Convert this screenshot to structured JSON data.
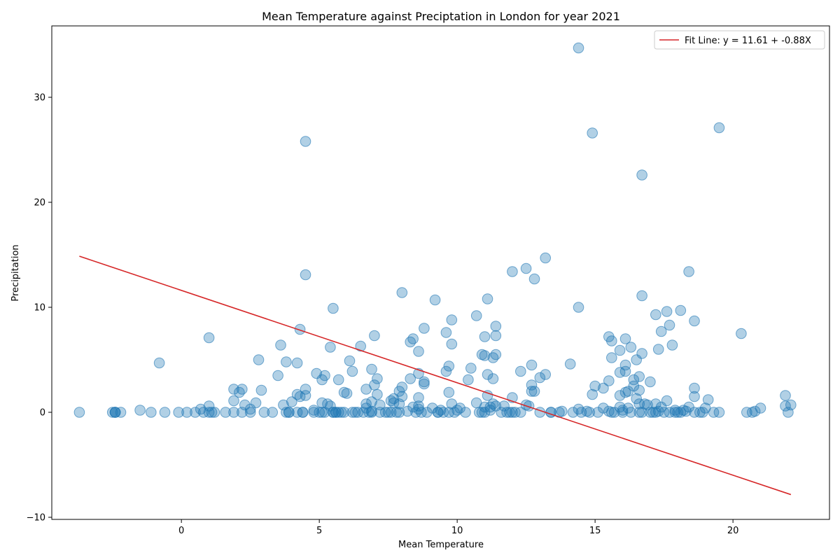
{
  "chart_data": {
    "type": "scatter",
    "title": "Mean Temperature against Preciptation in London for year 2021",
    "xlabel": "Mean Temperature",
    "ylabel": "Precipitation",
    "xlim": [
      -4.7,
      23.5
    ],
    "ylim": [
      -10.2,
      36.8
    ],
    "xticks": [
      0,
      5,
      10,
      15,
      20
    ],
    "yticks": [
      -10,
      0,
      10,
      20,
      30
    ],
    "grid": false,
    "legend_position": "top-right",
    "point_color": "#1f77b4",
    "line_color": "#d62728",
    "fit_line": {
      "label": "Fit Line: y = 11.61 + -0.88X",
      "intercept": 11.61,
      "slope": -0.88,
      "x_range": [
        -3.7,
        22.1
      ]
    },
    "points": [
      [
        -3.7,
        0
      ],
      [
        -2.5,
        0
      ],
      [
        -2.4,
        0
      ],
      [
        -2.4,
        0
      ],
      [
        -2.4,
        0
      ],
      [
        -2.2,
        0
      ],
      [
        -1.5,
        0.2
      ],
      [
        -1.1,
        0
      ],
      [
        -0.8,
        4.7
      ],
      [
        -0.6,
        0
      ],
      [
        -0.1,
        0
      ],
      [
        0.2,
        0
      ],
      [
        0.5,
        0
      ],
      [
        0.7,
        0.3
      ],
      [
        0.8,
        0
      ],
      [
        1.0,
        0
      ],
      [
        1.0,
        0.6
      ],
      [
        1.0,
        7.1
      ],
      [
        1.1,
        0
      ],
      [
        1.2,
        0
      ],
      [
        1.6,
        0
      ],
      [
        1.9,
        0
      ],
      [
        1.9,
        1.1
      ],
      [
        1.9,
        2.2
      ],
      [
        2.1,
        1.9
      ],
      [
        2.2,
        2.2
      ],
      [
        2.2,
        0
      ],
      [
        2.3,
        0.7
      ],
      [
        2.5,
        0
      ],
      [
        2.5,
        0.3
      ],
      [
        2.7,
        0.9
      ],
      [
        2.8,
        5.0
      ],
      [
        2.9,
        2.1
      ],
      [
        3.0,
        0
      ],
      [
        3.3,
        0
      ],
      [
        3.5,
        3.5
      ],
      [
        3.6,
        6.4
      ],
      [
        3.7,
        0.7
      ],
      [
        3.8,
        4.8
      ],
      [
        3.8,
        0
      ],
      [
        3.9,
        0
      ],
      [
        3.9,
        0
      ],
      [
        4.0,
        1.0
      ],
      [
        4.2,
        1.7
      ],
      [
        4.2,
        0
      ],
      [
        4.2,
        4.7
      ],
      [
        4.3,
        7.9
      ],
      [
        4.3,
        1.5
      ],
      [
        4.4,
        0
      ],
      [
        4.4,
        0
      ],
      [
        4.5,
        25.8
      ],
      [
        4.5,
        13.1
      ],
      [
        4.5,
        2.2
      ],
      [
        4.5,
        1.6
      ],
      [
        4.8,
        0
      ],
      [
        4.8,
        0.2
      ],
      [
        4.9,
        3.7
      ],
      [
        5.0,
        0
      ],
      [
        5.1,
        3.1
      ],
      [
        5.1,
        0.9
      ],
      [
        5.1,
        0
      ],
      [
        5.2,
        3.5
      ],
      [
        5.2,
        0
      ],
      [
        5.3,
        0.8
      ],
      [
        5.4,
        6.2
      ],
      [
        5.4,
        0.6
      ],
      [
        5.5,
        9.9
      ],
      [
        5.5,
        0
      ],
      [
        5.5,
        0
      ],
      [
        5.6,
        0
      ],
      [
        5.6,
        0
      ],
      [
        5.7,
        3.1
      ],
      [
        5.7,
        0
      ],
      [
        5.8,
        0
      ],
      [
        5.9,
        1.9
      ],
      [
        5.9,
        0
      ],
      [
        6.0,
        1.8
      ],
      [
        6.1,
        4.9
      ],
      [
        6.2,
        3.9
      ],
      [
        6.2,
        0
      ],
      [
        6.3,
        0
      ],
      [
        6.4,
        0
      ],
      [
        6.5,
        6.3
      ],
      [
        6.6,
        0
      ],
      [
        6.7,
        2.2
      ],
      [
        6.7,
        0.8
      ],
      [
        6.7,
        0.4
      ],
      [
        6.8,
        0
      ],
      [
        6.9,
        4.1
      ],
      [
        6.9,
        1.0
      ],
      [
        6.9,
        0.1
      ],
      [
        6.9,
        0
      ],
      [
        7.0,
        7.3
      ],
      [
        7.0,
        2.6
      ],
      [
        7.1,
        3.2
      ],
      [
        7.1,
        1.7
      ],
      [
        7.2,
        0.7
      ],
      [
        7.2,
        0
      ],
      [
        7.4,
        0
      ],
      [
        7.5,
        0
      ],
      [
        7.6,
        0
      ],
      [
        7.6,
        1.1
      ],
      [
        7.7,
        1.3
      ],
      [
        7.7,
        0.9
      ],
      [
        7.8,
        0
      ],
      [
        7.9,
        2.0
      ],
      [
        7.9,
        0.8
      ],
      [
        7.9,
        0
      ],
      [
        8.0,
        11.4
      ],
      [
        8.0,
        2.4
      ],
      [
        8.0,
        1.5
      ],
      [
        8.2,
        0.1
      ],
      [
        8.3,
        6.7
      ],
      [
        8.3,
        3.2
      ],
      [
        8.4,
        7.0
      ],
      [
        8.4,
        0.5
      ],
      [
        8.5,
        0
      ],
      [
        8.6,
        5.8
      ],
      [
        8.6,
        3.7
      ],
      [
        8.6,
        1.4
      ],
      [
        8.6,
        0.6
      ],
      [
        8.6,
        0.3
      ],
      [
        8.7,
        0
      ],
      [
        8.8,
        8.0
      ],
      [
        8.8,
        2.9
      ],
      [
        8.8,
        2.7
      ],
      [
        8.9,
        0
      ],
      [
        9.1,
        0.4
      ],
      [
        9.2,
        10.7
      ],
      [
        9.3,
        0
      ],
      [
        9.3,
        0
      ],
      [
        9.4,
        0.2
      ],
      [
        9.5,
        0
      ],
      [
        9.6,
        7.6
      ],
      [
        9.6,
        3.9
      ],
      [
        9.7,
        4.4
      ],
      [
        9.7,
        1.9
      ],
      [
        9.7,
        0
      ],
      [
        9.8,
        8.8
      ],
      [
        9.8,
        6.5
      ],
      [
        9.8,
        0.8
      ],
      [
        9.9,
        0
      ],
      [
        10.0,
        0.2
      ],
      [
        10.1,
        0.4
      ],
      [
        10.3,
        0
      ],
      [
        10.4,
        3.1
      ],
      [
        10.5,
        4.2
      ],
      [
        10.7,
        9.2
      ],
      [
        10.7,
        0.9
      ],
      [
        10.8,
        0
      ],
      [
        10.9,
        5.5
      ],
      [
        10.9,
        0
      ],
      [
        11.0,
        5.4
      ],
      [
        11.0,
        7.2
      ],
      [
        11.0,
        0.5
      ],
      [
        11.0,
        0
      ],
      [
        11.1,
        10.8
      ],
      [
        11.1,
        3.6
      ],
      [
        11.1,
        1.6
      ],
      [
        11.2,
        0.5
      ],
      [
        11.2,
        0.2
      ],
      [
        11.3,
        5.2
      ],
      [
        11.3,
        3.2
      ],
      [
        11.3,
        0.8
      ],
      [
        11.4,
        8.2
      ],
      [
        11.4,
        7.3
      ],
      [
        11.4,
        5.5
      ],
      [
        11.4,
        0.6
      ],
      [
        11.6,
        0
      ],
      [
        11.7,
        0.6
      ],
      [
        11.8,
        0
      ],
      [
        11.9,
        0
      ],
      [
        12.0,
        13.4
      ],
      [
        12.0,
        1.4
      ],
      [
        12.0,
        0
      ],
      [
        12.1,
        0
      ],
      [
        12.3,
        3.9
      ],
      [
        12.3,
        0
      ],
      [
        12.5,
        13.7
      ],
      [
        12.5,
        0.7
      ],
      [
        12.6,
        0.6
      ],
      [
        12.7,
        4.5
      ],
      [
        12.7,
        2.6
      ],
      [
        12.7,
        2.0
      ],
      [
        12.8,
        12.7
      ],
      [
        12.8,
        2.0
      ],
      [
        13.0,
        3.3
      ],
      [
        13.0,
        0
      ],
      [
        13.2,
        14.7
      ],
      [
        13.2,
        3.6
      ],
      [
        13.4,
        0
      ],
      [
        13.4,
        0
      ],
      [
        13.7,
        0
      ],
      [
        13.8,
        0.1
      ],
      [
        14.1,
        4.6
      ],
      [
        14.2,
        0
      ],
      [
        14.4,
        34.7
      ],
      [
        14.4,
        10.0
      ],
      [
        14.4,
        0.3
      ],
      [
        14.5,
        0
      ],
      [
        14.7,
        0.1
      ],
      [
        14.8,
        0
      ],
      [
        14.9,
        26.6
      ],
      [
        14.9,
        1.7
      ],
      [
        15.0,
        2.5
      ],
      [
        15.1,
        0
      ],
      [
        15.3,
        2.3
      ],
      [
        15.3,
        0.4
      ],
      [
        15.5,
        7.2
      ],
      [
        15.5,
        3.0
      ],
      [
        15.5,
        0.1
      ],
      [
        15.6,
        6.8
      ],
      [
        15.6,
        5.2
      ],
      [
        15.6,
        0
      ],
      [
        15.7,
        0
      ],
      [
        15.9,
        5.9
      ],
      [
        15.9,
        3.8
      ],
      [
        15.9,
        1.6
      ],
      [
        15.9,
        0.5
      ],
      [
        16.0,
        0.2
      ],
      [
        16.0,
        0
      ],
      [
        16.1,
        7.0
      ],
      [
        16.1,
        4.5
      ],
      [
        16.1,
        3.9
      ],
      [
        16.1,
        1.9
      ],
      [
        16.2,
        2.0
      ],
      [
        16.2,
        0.4
      ],
      [
        16.3,
        6.2
      ],
      [
        16.3,
        0
      ],
      [
        16.4,
        3.1
      ],
      [
        16.4,
        2.5
      ],
      [
        16.5,
        5.0
      ],
      [
        16.5,
        1.3
      ],
      [
        16.6,
        3.4
      ],
      [
        16.6,
        2.1
      ],
      [
        16.6,
        0.8
      ],
      [
        16.6,
        0
      ],
      [
        16.7,
        22.6
      ],
      [
        16.7,
        11.1
      ],
      [
        16.7,
        5.6
      ],
      [
        16.7,
        0
      ],
      [
        16.8,
        0.8
      ],
      [
        16.9,
        0.7
      ],
      [
        17.0,
        2.9
      ],
      [
        17.0,
        0
      ],
      [
        17.1,
        0
      ],
      [
        17.2,
        9.3
      ],
      [
        17.2,
        0.8
      ],
      [
        17.2,
        0
      ],
      [
        17.3,
        6.0
      ],
      [
        17.3,
        0.1
      ],
      [
        17.4,
        7.7
      ],
      [
        17.4,
        0.5
      ],
      [
        17.5,
        0
      ],
      [
        17.6,
        9.6
      ],
      [
        17.6,
        1.1
      ],
      [
        17.7,
        8.3
      ],
      [
        17.7,
        0
      ],
      [
        17.8,
        6.4
      ],
      [
        17.9,
        0.2
      ],
      [
        17.9,
        0
      ],
      [
        18.0,
        0
      ],
      [
        18.1,
        9.7
      ],
      [
        18.1,
        0
      ],
      [
        18.2,
        0.2
      ],
      [
        18.3,
        0.1
      ],
      [
        18.4,
        13.4
      ],
      [
        18.4,
        0.5
      ],
      [
        18.6,
        8.7
      ],
      [
        18.6,
        2.3
      ],
      [
        18.6,
        1.5
      ],
      [
        18.6,
        0
      ],
      [
        18.8,
        0
      ],
      [
        18.9,
        0
      ],
      [
        19.0,
        0.4
      ],
      [
        19.1,
        1.2
      ],
      [
        19.3,
        0
      ],
      [
        19.5,
        27.1
      ],
      [
        19.5,
        0
      ],
      [
        20.3,
        7.5
      ],
      [
        20.5,
        0
      ],
      [
        20.7,
        0
      ],
      [
        20.8,
        0.1
      ],
      [
        21.0,
        0.4
      ],
      [
        21.9,
        1.6
      ],
      [
        21.9,
        0.6
      ],
      [
        22.0,
        0
      ],
      [
        22.1,
        0.7
      ]
    ]
  }
}
